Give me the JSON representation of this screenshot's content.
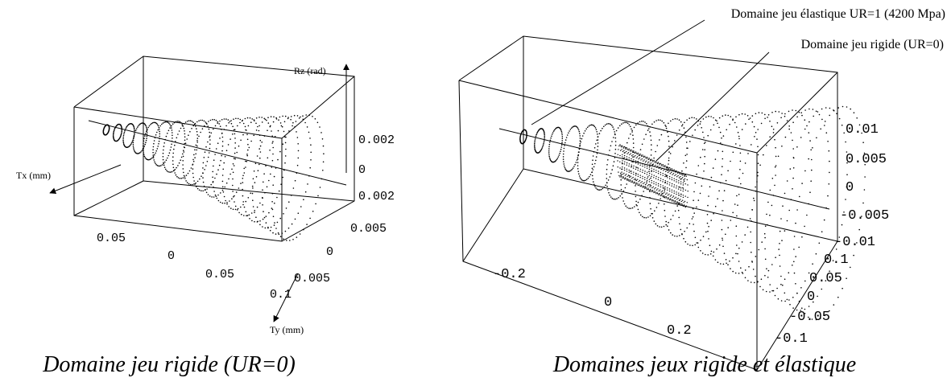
{
  "panels": [
    {
      "caption": "Domaine jeu rigide (UR=0)",
      "axis_labels": {
        "z": "Rz (rad)",
        "x": "Tx (mm)",
        "y": "Ty (mm)"
      },
      "z_ticks": [
        "0.002",
        "0",
        "0.002"
      ],
      "y_ticks": [
        "0.005",
        "0",
        "0.005"
      ],
      "x_ticks": [
        "0.05",
        "0",
        "0.05",
        "0.1"
      ]
    },
    {
      "caption": "Domaines jeux rigide et élastique",
      "annotations": [
        "Domaine jeu élastique UR=1 (4200 Mpa)",
        "Domaine jeu rigide (UR=0)"
      ],
      "z_ticks": [
        "0.01",
        "0.005",
        "0",
        "-0.005",
        "-0.01"
      ],
      "y_ticks": [
        "0.1",
        "0.05",
        "0",
        "-0.05",
        "-0.1"
      ],
      "x_ticks": [
        "-0.2",
        "0",
        "0.2"
      ]
    }
  ]
}
